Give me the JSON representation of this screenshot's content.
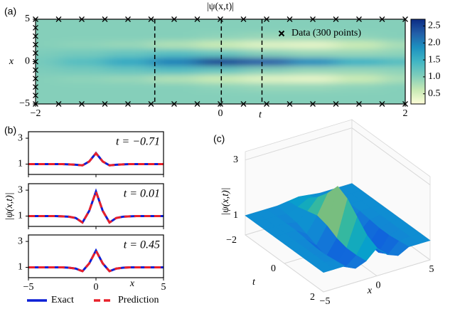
{
  "chart_data": [
    {
      "type": "heatmap",
      "panel_label": "(a)",
      "title": "|ψ(x,t)|",
      "xlabel": "t",
      "ylabel": "x",
      "t": [
        -2,
        -1.5,
        -1,
        -0.5,
        0,
        0.5,
        1,
        1.5,
        2
      ],
      "x": [
        -5,
        -4,
        -3,
        -2,
        -1,
        0,
        1,
        2,
        3,
        4,
        5
      ],
      "z": [
        [
          1,
          1,
          1,
          1,
          1,
          1,
          1,
          1,
          1
        ],
        [
          1,
          1,
          1,
          1,
          1,
          1,
          1,
          1,
          1
        ],
        [
          1,
          1,
          1,
          1,
          0.95,
          0.9,
          0.9,
          0.95,
          1
        ],
        [
          1,
          0.95,
          0.9,
          0.75,
          0.6,
          0.45,
          0.4,
          0.6,
          0.8
        ],
        [
          1.05,
          1.1,
          1.2,
          1.3,
          1.2,
          1.0,
          0.9,
          0.9,
          0.95
        ],
        [
          1.1,
          1.3,
          1.6,
          2.0,
          2.5,
          2.3,
          1.9,
          1.5,
          1.3
        ],
        [
          1.05,
          1.1,
          1.2,
          1.3,
          1.2,
          1.0,
          0.9,
          0.9,
          0.95
        ],
        [
          1,
          0.95,
          0.9,
          0.75,
          0.6,
          0.45,
          0.4,
          0.6,
          0.8
        ],
        [
          1,
          1,
          1,
          1,
          0.95,
          0.9,
          0.9,
          0.95,
          1
        ],
        [
          1,
          1,
          1,
          1,
          1,
          1,
          1,
          1,
          1
        ],
        [
          1,
          1,
          1,
          1,
          1,
          1,
          1,
          1,
          1
        ]
      ],
      "xlim": [
        -2,
        2
      ],
      "ylim": [
        -5,
        5
      ],
      "xticks": [
        {
          "value": -2,
          "label": "−2"
        },
        0,
        2
      ],
      "yticks": [
        {
          "value": -5,
          "label": "−5"
        },
        0,
        5
      ],
      "colormap": [
        "#ffffd9",
        "#c7e9b4",
        "#7fcdbb",
        "#41b6c4",
        "#1d91c0",
        "#225ea8",
        "#0c2c84"
      ],
      "clim": [
        0.2,
        2.7
      ],
      "cticks": [
        0.5,
        {
          "value": 1,
          "label": "1.0"
        },
        1.5,
        {
          "value": 2,
          "label": "2.0"
        },
        2.5
      ],
      "series": [
        {
          "name": "Data (300 points)",
          "type": "scatter",
          "color": "#000000",
          "x": [
            -2,
            -1.75,
            -1.5,
            -1.25,
            -1,
            -0.75,
            -0.5,
            -0.25,
            0,
            0.25,
            0.5,
            0.75,
            1,
            1.25,
            1.5,
            1.75,
            2,
            -2,
            -1.75,
            -1.5,
            -1.25,
            -1,
            -0.75,
            -0.5,
            -0.25,
            0,
            0.25,
            0.5,
            0.75,
            1,
            1.25,
            1.5,
            1.75,
            2,
            -2,
            -2,
            -2,
            -2,
            -2,
            -2,
            -2,
            -2,
            -2
          ],
          "y": [
            5,
            5,
            5,
            5,
            5,
            5,
            5,
            5,
            5,
            5,
            5,
            5,
            5,
            5,
            5,
            5,
            5,
            -5,
            -5,
            -5,
            -5,
            -5,
            -5,
            -5,
            -5,
            -5,
            -5,
            -5,
            -5,
            -5,
            -5,
            -5,
            -5,
            -5,
            -4,
            -3,
            -2,
            -1,
            0,
            1,
            2,
            3,
            4
          ]
        }
      ],
      "slices": [
        -0.71,
        0.01,
        0.45
      ]
    },
    {
      "type": "line",
      "panel_label": "(b)",
      "ylabel": "|ψ(x,t)|",
      "xlabel": "x",
      "x": [
        -5,
        -4.5,
        -4,
        -3.5,
        -3,
        -2.5,
        -2,
        -1.5,
        -1,
        -0.5,
        0,
        0.5,
        1,
        1.5,
        2,
        2.5,
        3,
        3.5,
        4,
        4.5,
        5
      ],
      "xlim": [
        -5,
        5
      ],
      "ylim": [
        0.2,
        3.5
      ],
      "xticks": [
        {
          "value": -5,
          "label": "−5"
        },
        0,
        5
      ],
      "yticks": [
        1,
        3
      ],
      "legend": [
        {
          "name": "Exact",
          "color": "#0b1fd6",
          "dash": false
        },
        {
          "name": "Prediction",
          "color": "#e8202a",
          "dash": true
        }
      ],
      "subplots": [
        {
          "annotation": "t = −0.71",
          "exact": [
            1,
            1,
            1,
            1,
            1,
            1,
            0.98,
            0.95,
            0.9,
            1.2,
            1.85,
            1.2,
            0.9,
            0.95,
            0.98,
            1,
            1,
            1,
            1,
            1,
            1
          ],
          "prediction": [
            1,
            1,
            1,
            1,
            1,
            1,
            0.98,
            0.95,
            0.9,
            1.2,
            1.83,
            1.2,
            0.9,
            0.95,
            0.98,
            1,
            1,
            1,
            1,
            1,
            1
          ]
        },
        {
          "annotation": "t = 0.01",
          "exact": [
            1,
            1,
            1,
            1,
            1,
            0.98,
            0.95,
            0.85,
            0.5,
            1.4,
            2.9,
            1.4,
            0.5,
            0.85,
            0.95,
            0.98,
            1,
            1,
            1,
            1,
            1
          ],
          "prediction": [
            1,
            1,
            1,
            1,
            1,
            0.98,
            0.95,
            0.85,
            0.5,
            1.4,
            2.88,
            1.4,
            0.5,
            0.85,
            0.95,
            0.98,
            1,
            1,
            1,
            1,
            1
          ]
        },
        {
          "annotation": "t = 0.45",
          "exact": [
            1,
            1,
            1,
            1,
            1,
            1,
            0.97,
            0.9,
            0.7,
            1.3,
            2.3,
            1.3,
            0.7,
            0.9,
            0.97,
            1,
            1,
            1,
            1,
            1,
            1
          ],
          "prediction": [
            1,
            1,
            1,
            1,
            1,
            1,
            0.97,
            0.9,
            0.7,
            1.3,
            2.28,
            1.3,
            0.7,
            0.9,
            0.97,
            1,
            1,
            1,
            1,
            1,
            1
          ]
        }
      ]
    },
    {
      "type": "surface",
      "panel_label": "(c)",
      "zlabel": "|ψ(x,t)|",
      "xlabel": "x",
      "ylabel": "t",
      "xlim": [
        -5,
        5
      ],
      "ylim": [
        -2,
        2
      ],
      "zlim": [
        0.3,
        3.3
      ],
      "xticks": [
        {
          "value": -5,
          "label": "−5"
        },
        0,
        5
      ],
      "yticks": [
        {
          "value": -2,
          "label": "−2"
        },
        0,
        2
      ],
      "zticks": [
        1,
        3
      ],
      "colormap": [
        "#352a87",
        "#0f5cdd",
        "#1481d6",
        "#06a4ca",
        "#2eb7a4",
        "#87bf77",
        "#d1bb59",
        "#fec832",
        "#f9fb0e"
      ],
      "clim": [
        0.3,
        2.7
      ]
    }
  ]
}
